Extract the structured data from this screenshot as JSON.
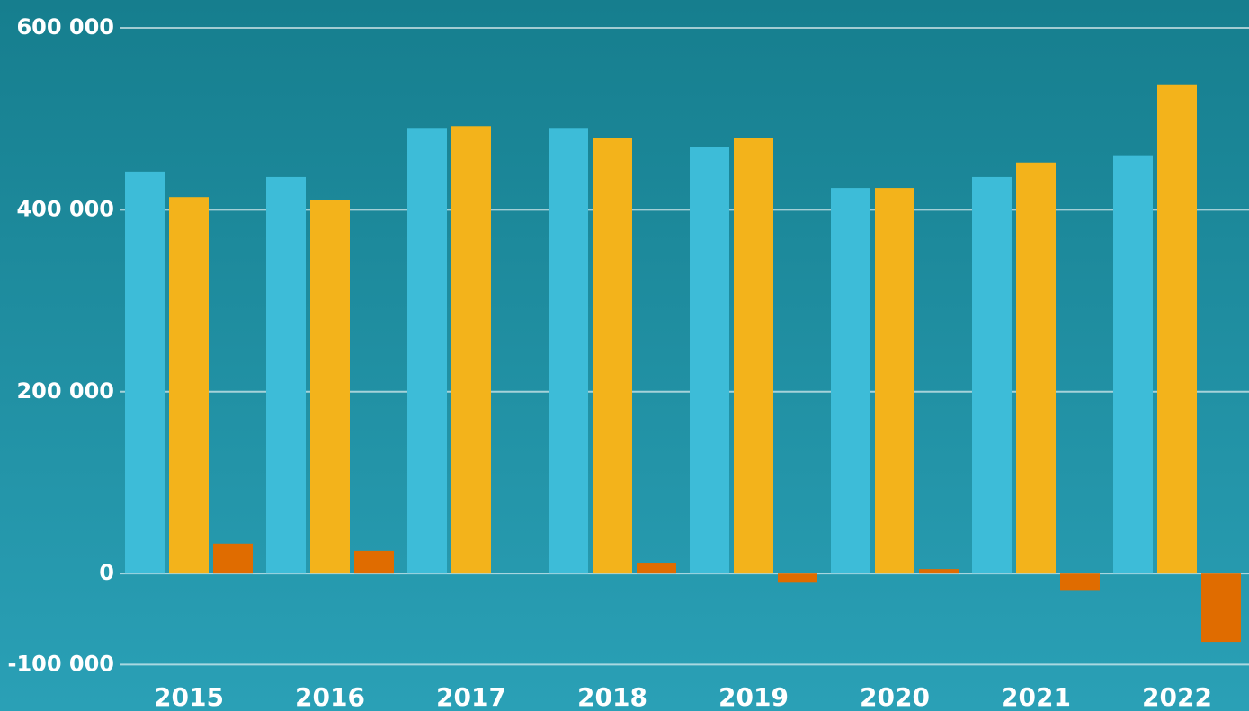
{
  "chart_data": {
    "type": "bar",
    "categories": [
      "2015",
      "2016",
      "2017",
      "2018",
      "2019",
      "2020",
      "2021",
      "2022"
    ],
    "series": [
      {
        "color": "#3dbcd8",
        "values": [
          442000,
          436000,
          490000,
          490000,
          469000,
          424000,
          436000,
          460000
        ]
      },
      {
        "color": "#f3b31b",
        "values": [
          414000,
          411000,
          492000,
          479000,
          479000,
          424000,
          452000,
          537000
        ]
      },
      {
        "color": "#e06c00",
        "values": [
          33000,
          25000,
          0,
          12000,
          -10000,
          5000,
          -18000,
          -75000
        ]
      }
    ],
    "ylim": [
      -151000,
      630600
    ],
    "yticks": [
      {
        "value": -100000,
        "label": "-100 000"
      },
      0,
      {
        "value": 200000,
        "label": "200 000"
      },
      {
        "value": 400000,
        "label": "400 000"
      },
      {
        "value": 600000,
        "label": "600 000"
      }
    ],
    "grid": true
  }
}
